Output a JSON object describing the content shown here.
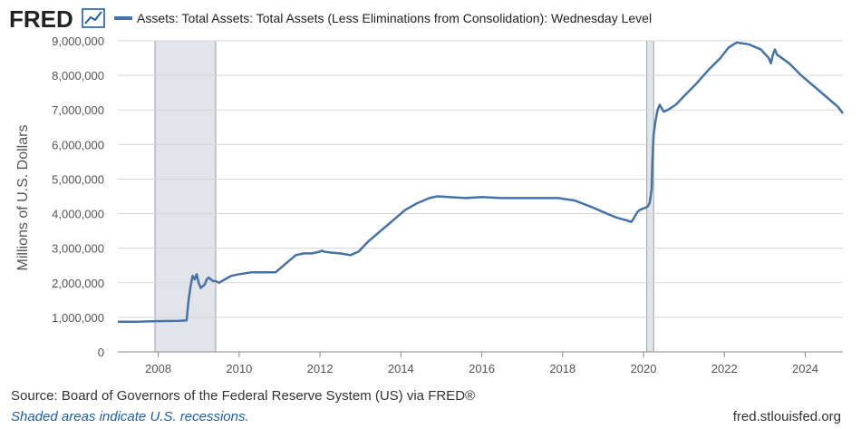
{
  "header": {
    "logo_text": "FRED",
    "logo_icon": "line-chart-icon",
    "legend_label": "Assets: Total Assets: Total Assets (Less Eliminations from Consolidation): Wednesday Level"
  },
  "footer": {
    "source": "Source: Board of Governors of the Federal Reserve System (US) via FRED®",
    "note": "Shaded areas indicate U.S. recessions.",
    "url": "fred.stlouisfed.org"
  },
  "colors": {
    "series": "#4572a7",
    "recession": "#e1e5ea",
    "grid": "#d5d5d5",
    "brand": "#1f5fa8"
  },
  "chart_data": {
    "type": "line",
    "title": "",
    "xlabel": "",
    "ylabel": "Millions of U.S. Dollars",
    "xlim": [
      2007.0,
      2024.93
    ],
    "ylim": [
      0,
      9000000
    ],
    "x_ticks": [
      "2008",
      "2010",
      "2012",
      "2014",
      "2016",
      "2018",
      "2020",
      "2022",
      "2024"
    ],
    "y_ticks": [
      "0",
      "1,000,000",
      "2,000,000",
      "3,000,000",
      "4,000,000",
      "5,000,000",
      "6,000,000",
      "7,000,000",
      "8,000,000",
      "9,000,000"
    ],
    "grid": "horizontal",
    "recessions": [
      [
        2007.92,
        2009.42
      ],
      [
        2020.08,
        2020.25
      ]
    ],
    "series": [
      {
        "name": "Assets: Total Assets: Total Assets (Less Eliminations from Consolidation): Wednesday Level",
        "x": [
          2007.0,
          2007.5,
          2007.92,
          2008.5,
          2008.7,
          2008.75,
          2008.8,
          2008.85,
          2008.9,
          2008.95,
          2009.0,
          2009.05,
          2009.1,
          2009.15,
          2009.2,
          2009.25,
          2009.3,
          2009.35,
          2009.42,
          2009.5,
          2009.65,
          2009.8,
          2010.0,
          2010.3,
          2010.6,
          2010.9,
          2011.1,
          2011.4,
          2011.6,
          2011.8,
          2012.0,
          2012.05,
          2012.1,
          2012.3,
          2012.5,
          2012.75,
          2012.95,
          2013.2,
          2013.5,
          2013.8,
          2014.1,
          2014.4,
          2014.7,
          2014.9,
          2015.2,
          2015.6,
          2016.0,
          2016.5,
          2017.0,
          2017.5,
          2017.9,
          2018.3,
          2018.7,
          2019.0,
          2019.3,
          2019.6,
          2019.7,
          2019.75,
          2019.8,
          2019.85,
          2019.9,
          2020.0,
          2020.1,
          2020.15,
          2020.2,
          2020.22,
          2020.25,
          2020.3,
          2020.35,
          2020.4,
          2020.45,
          2020.5,
          2020.6,
          2020.8,
          2021.0,
          2021.3,
          2021.6,
          2021.9,
          2022.1,
          2022.3,
          2022.6,
          2022.9,
          2023.1,
          2023.15,
          2023.2,
          2023.25,
          2023.3,
          2023.6,
          2023.9,
          2024.2,
          2024.5,
          2024.8,
          2024.93
        ],
        "y": [
          870000,
          870000,
          890000,
          900000,
          910000,
          1500000,
          1900000,
          2200000,
          2100000,
          2250000,
          2000000,
          1850000,
          1900000,
          1950000,
          2100000,
          2150000,
          2100000,
          2050000,
          2050000,
          2000000,
          2100000,
          2200000,
          2250000,
          2300000,
          2300000,
          2300000,
          2500000,
          2800000,
          2850000,
          2850000,
          2900000,
          2930000,
          2900000,
          2870000,
          2850000,
          2800000,
          2900000,
          3200000,
          3500000,
          3800000,
          4100000,
          4300000,
          4450000,
          4500000,
          4480000,
          4450000,
          4480000,
          4450000,
          4450000,
          4450000,
          4450000,
          4380000,
          4200000,
          4050000,
          3900000,
          3800000,
          3760000,
          3850000,
          3950000,
          4050000,
          4100000,
          4150000,
          4200000,
          4300000,
          4700000,
          5500000,
          6300000,
          6700000,
          7000000,
          7150000,
          7050000,
          6950000,
          7000000,
          7150000,
          7400000,
          7750000,
          8150000,
          8500000,
          8800000,
          8950000,
          8900000,
          8750000,
          8500000,
          8350000,
          8600000,
          8750000,
          8600000,
          8350000,
          8000000,
          7700000,
          7400000,
          7100000,
          6900000
        ]
      }
    ]
  }
}
